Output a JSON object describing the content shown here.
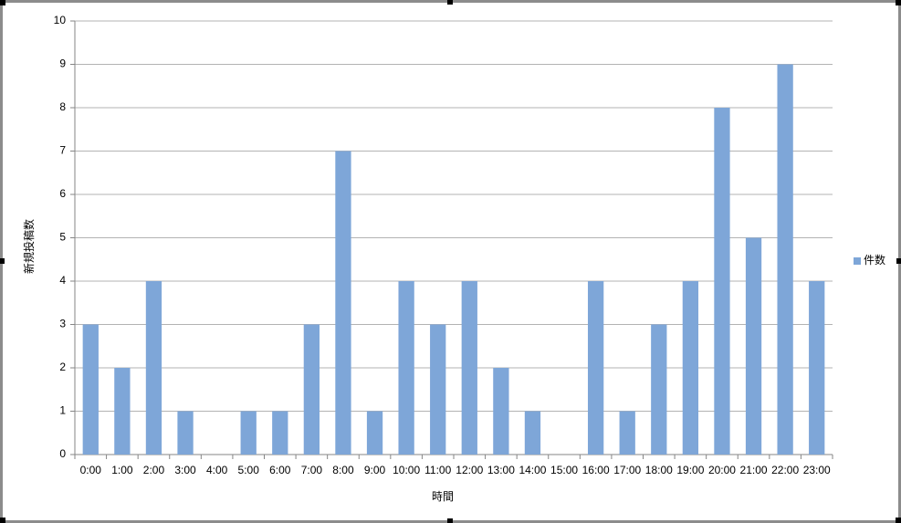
{
  "chart_data": {
    "type": "bar",
    "y_label": "新規投稿数",
    "x_label": "時間",
    "categories": [
      "0:00",
      "1:00",
      "2:00",
      "3:00",
      "4:00",
      "5:00",
      "6:00",
      "7:00",
      "8:00",
      "9:00",
      "10:00",
      "11:00",
      "12:00",
      "13:00",
      "14:00",
      "15:00",
      "16:00",
      "17:00",
      "18:00",
      "19:00",
      "20:00",
      "21:00",
      "22:00",
      "23:00"
    ],
    "series": [
      {
        "name": "件数",
        "color": "#7ea6d8",
        "values": [
          3,
          2,
          4,
          1,
          0,
          1,
          1,
          3,
          7,
          1,
          4,
          3,
          4,
          2,
          1,
          0,
          4,
          1,
          3,
          4,
          8,
          5,
          9,
          4
        ]
      }
    ],
    "ylim": [
      0,
      10
    ],
    "yticks": [
      0,
      1,
      2,
      3,
      4,
      5,
      6,
      7,
      8,
      9,
      10
    ],
    "grid": true,
    "legend": "right"
  }
}
